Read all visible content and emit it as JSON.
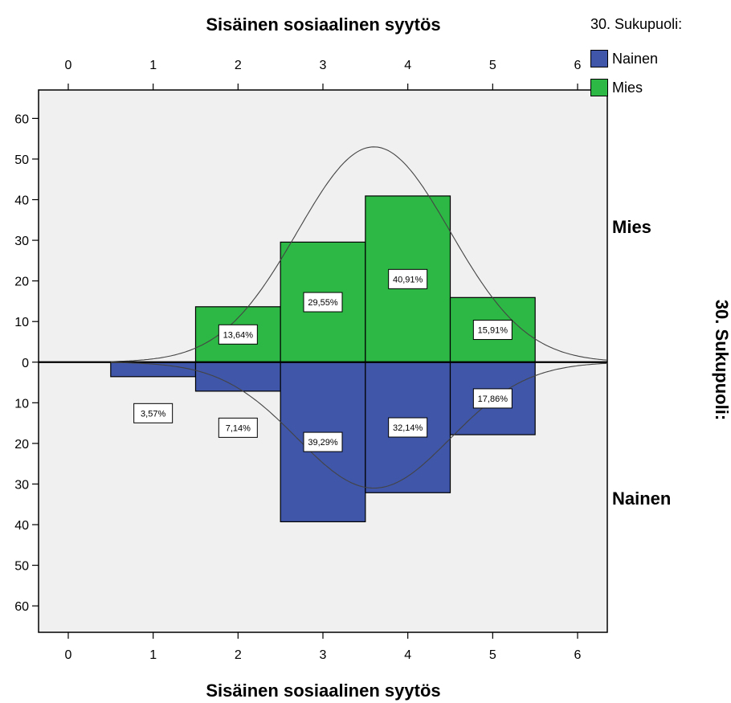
{
  "chart_data": {
    "type": "bar",
    "subtype": "population-pyramid-histogram",
    "title_top": "Sisäinen sosiaalinen syytös",
    "xlabel": "Sisäinen sosiaalinen syytös",
    "panel_axis_label": "30. Sukupuoli:",
    "legend_title": "30. Sukupuoli:",
    "legend_position": "top-right",
    "x_ticks": [
      "0",
      "1",
      "2",
      "3",
      "4",
      "5",
      "6"
    ],
    "xlim": [
      -0.35,
      6.35
    ],
    "y_ticks": [
      "60",
      "50",
      "40",
      "30",
      "20",
      "10",
      "0",
      "10",
      "20",
      "30",
      "40",
      "50",
      "60"
    ],
    "ylim": [
      -66.5,
      67
    ],
    "series": [
      {
        "name": "Mies",
        "direction": "up",
        "color": "#2db845",
        "categories": [
          1,
          2,
          3,
          4,
          5
        ],
        "values": [
          0,
          13.64,
          29.55,
          40.91,
          15.91
        ],
        "labels": [
          "",
          "13,64%",
          "29,55%",
          "40,91%",
          "15,91%"
        ],
        "normal_curve": {
          "mean": 3.6,
          "sd": 0.9,
          "peak": 53
        }
      },
      {
        "name": "Nainen",
        "direction": "down",
        "color": "#3f56a9",
        "categories": [
          1,
          2,
          3,
          4,
          5
        ],
        "values": [
          3.57,
          7.14,
          39.29,
          32.14,
          17.86
        ],
        "labels": [
          "3,57%",
          "7,14%",
          "39,29%",
          "32,14%",
          "17,86%"
        ],
        "normal_curve": {
          "mean": 3.6,
          "sd": 0.9,
          "peak": 31
        }
      }
    ],
    "grid": false,
    "background": "#f0f0f0"
  },
  "legend": {
    "title": "30. Sukupuoli:",
    "items": [
      {
        "label": "Nainen",
        "color": "#3f56a9"
      },
      {
        "label": "Mies",
        "color": "#2db845"
      }
    ]
  },
  "group_labels": {
    "top": "Mies",
    "bottom": "Nainen"
  }
}
